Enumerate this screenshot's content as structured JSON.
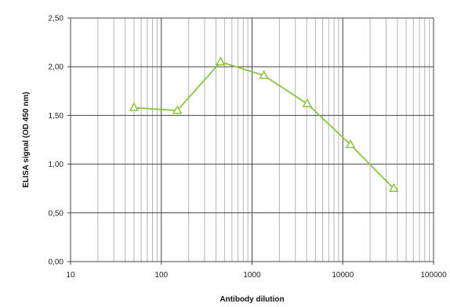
{
  "chart_data": {
    "type": "line",
    "xlabel": "Antibody dilution",
    "ylabel": "ELISA signal (OD 450 nm)",
    "x_scale": "log",
    "xlim": [
      10,
      100000
    ],
    "ylim": [
      0,
      2.5
    ],
    "x_ticks": [
      10,
      100,
      1000,
      10000,
      100000
    ],
    "x_tick_labels": [
      "10",
      "100",
      "1000",
      "10000",
      "100000"
    ],
    "y_ticks": [
      0,
      0.5,
      1.0,
      1.5,
      2.0,
      2.5
    ],
    "y_tick_labels": [
      "0,00",
      "0,50",
      "1,00",
      "1,50",
      "2,00",
      "2,50"
    ],
    "grid": true,
    "series": [
      {
        "color": "#8cc43c",
        "marker": "triangle",
        "x": [
          50,
          150,
          450,
          1350,
          4050,
          12150,
          36450
        ],
        "y": [
          1.58,
          1.55,
          2.05,
          1.91,
          1.62,
          1.2,
          0.75
        ]
      }
    ]
  },
  "colors": {
    "grid_major": "#444444",
    "grid_minor": "#b5b5b5",
    "plot_border": "#444444"
  }
}
